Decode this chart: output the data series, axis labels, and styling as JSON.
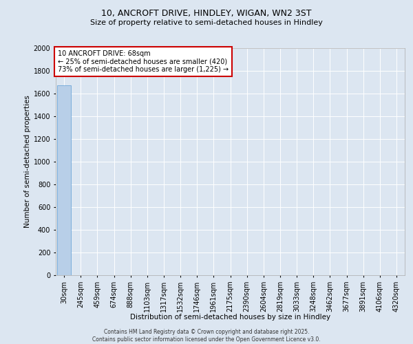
{
  "title_line1": "10, ANCROFT DRIVE, HINDLEY, WIGAN, WN2 3ST",
  "title_line2": "Size of property relative to semi-detached houses in Hindley",
  "xlabel": "Distribution of semi-detached houses by size in Hindley",
  "ylabel": "Number of semi-detached properties",
  "annotation_line1": "10 ANCROFT DRIVE: 68sqm",
  "annotation_line2": "← 25% of semi-detached houses are smaller (420)",
  "annotation_line3": "73% of semi-detached houses are larger (1,225) →",
  "footer": "Contains HM Land Registry data © Crown copyright and database right 2025.\nContains public sector information licensed under the Open Government Licence v3.0.",
  "categories": [
    "30sqm",
    "245sqm",
    "459sqm",
    "674sqm",
    "888sqm",
    "1103sqm",
    "1317sqm",
    "1532sqm",
    "1746sqm",
    "1961sqm",
    "2175sqm",
    "2390sqm",
    "2604sqm",
    "2819sqm",
    "3033sqm",
    "3248sqm",
    "3462sqm",
    "3677sqm",
    "3891sqm",
    "4106sqm",
    "4320sqm"
  ],
  "values": [
    1670,
    0,
    0,
    0,
    0,
    0,
    0,
    0,
    0,
    0,
    0,
    0,
    0,
    0,
    0,
    0,
    0,
    0,
    0,
    0,
    0
  ],
  "bar_color": "#b8cfe8",
  "bar_edge_color": "#5b9bd5",
  "background_color": "#dce6f1",
  "plot_bg_color": "#dce6f1",
  "grid_color": "#ffffff",
  "ylim": [
    0,
    2000
  ],
  "yticks": [
    0,
    200,
    400,
    600,
    800,
    1000,
    1200,
    1400,
    1600,
    1800,
    2000
  ],
  "annotation_box_color": "#cc0000",
  "title1_fontsize": 9,
  "title2_fontsize": 8,
  "ylabel_fontsize": 7.5,
  "xlabel_fontsize": 7.5,
  "tick_fontsize": 7,
  "ann_fontsize": 7,
  "footer_fontsize": 5.5
}
